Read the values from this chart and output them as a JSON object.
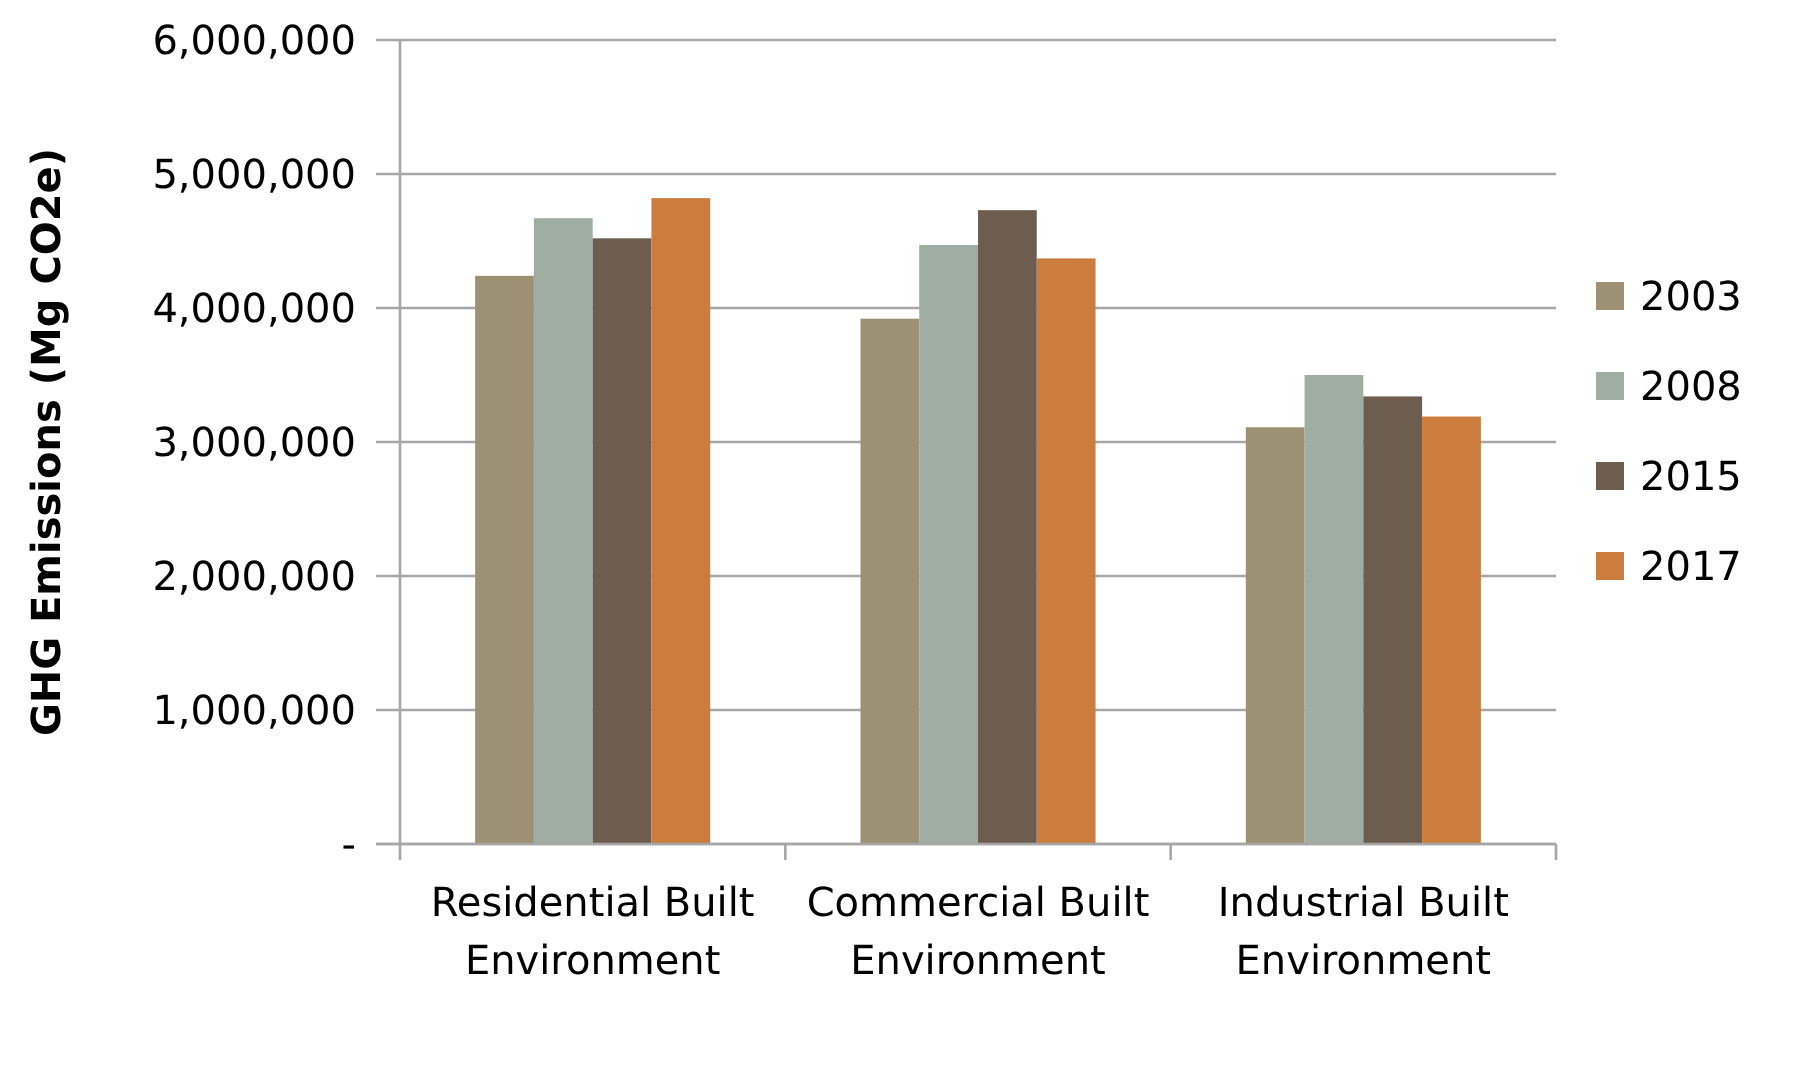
{
  "chart_data": {
    "type": "bar",
    "ylabel": "GHG Emissions (Mg CO2e)",
    "categories": [
      "Residential Built Environment",
      "Commercial Built Environment",
      "Industrial Built Environment"
    ],
    "series": [
      {
        "name": "2003",
        "color": "#9c9172",
        "values": [
          4240000,
          3920000,
          3110000
        ]
      },
      {
        "name": "2008",
        "color": "#9fada3",
        "values": [
          4670000,
          4470000,
          3500000
        ]
      },
      {
        "name": "2015",
        "color": "#6c5d4f",
        "values": [
          4520000,
          4730000,
          3340000
        ]
      },
      {
        "name": "2017",
        "color": "#cc7c3c",
        "values": [
          4820000,
          4370000,
          3190000
        ]
      }
    ],
    "ylim": [
      0,
      6000000
    ],
    "yticks": [
      {
        "value": 0,
        "label": "-"
      },
      {
        "value": 1000000,
        "label": "1,000,000"
      },
      {
        "value": 2000000,
        "label": "2,000,000"
      },
      {
        "value": 3000000,
        "label": "3,000,000"
      },
      {
        "value": 4000000,
        "label": "4,000,000"
      },
      {
        "value": 5000000,
        "label": "5,000,000"
      },
      {
        "value": 6000000,
        "label": "6,000,000"
      }
    ],
    "grid": "y",
    "legend": "right"
  }
}
